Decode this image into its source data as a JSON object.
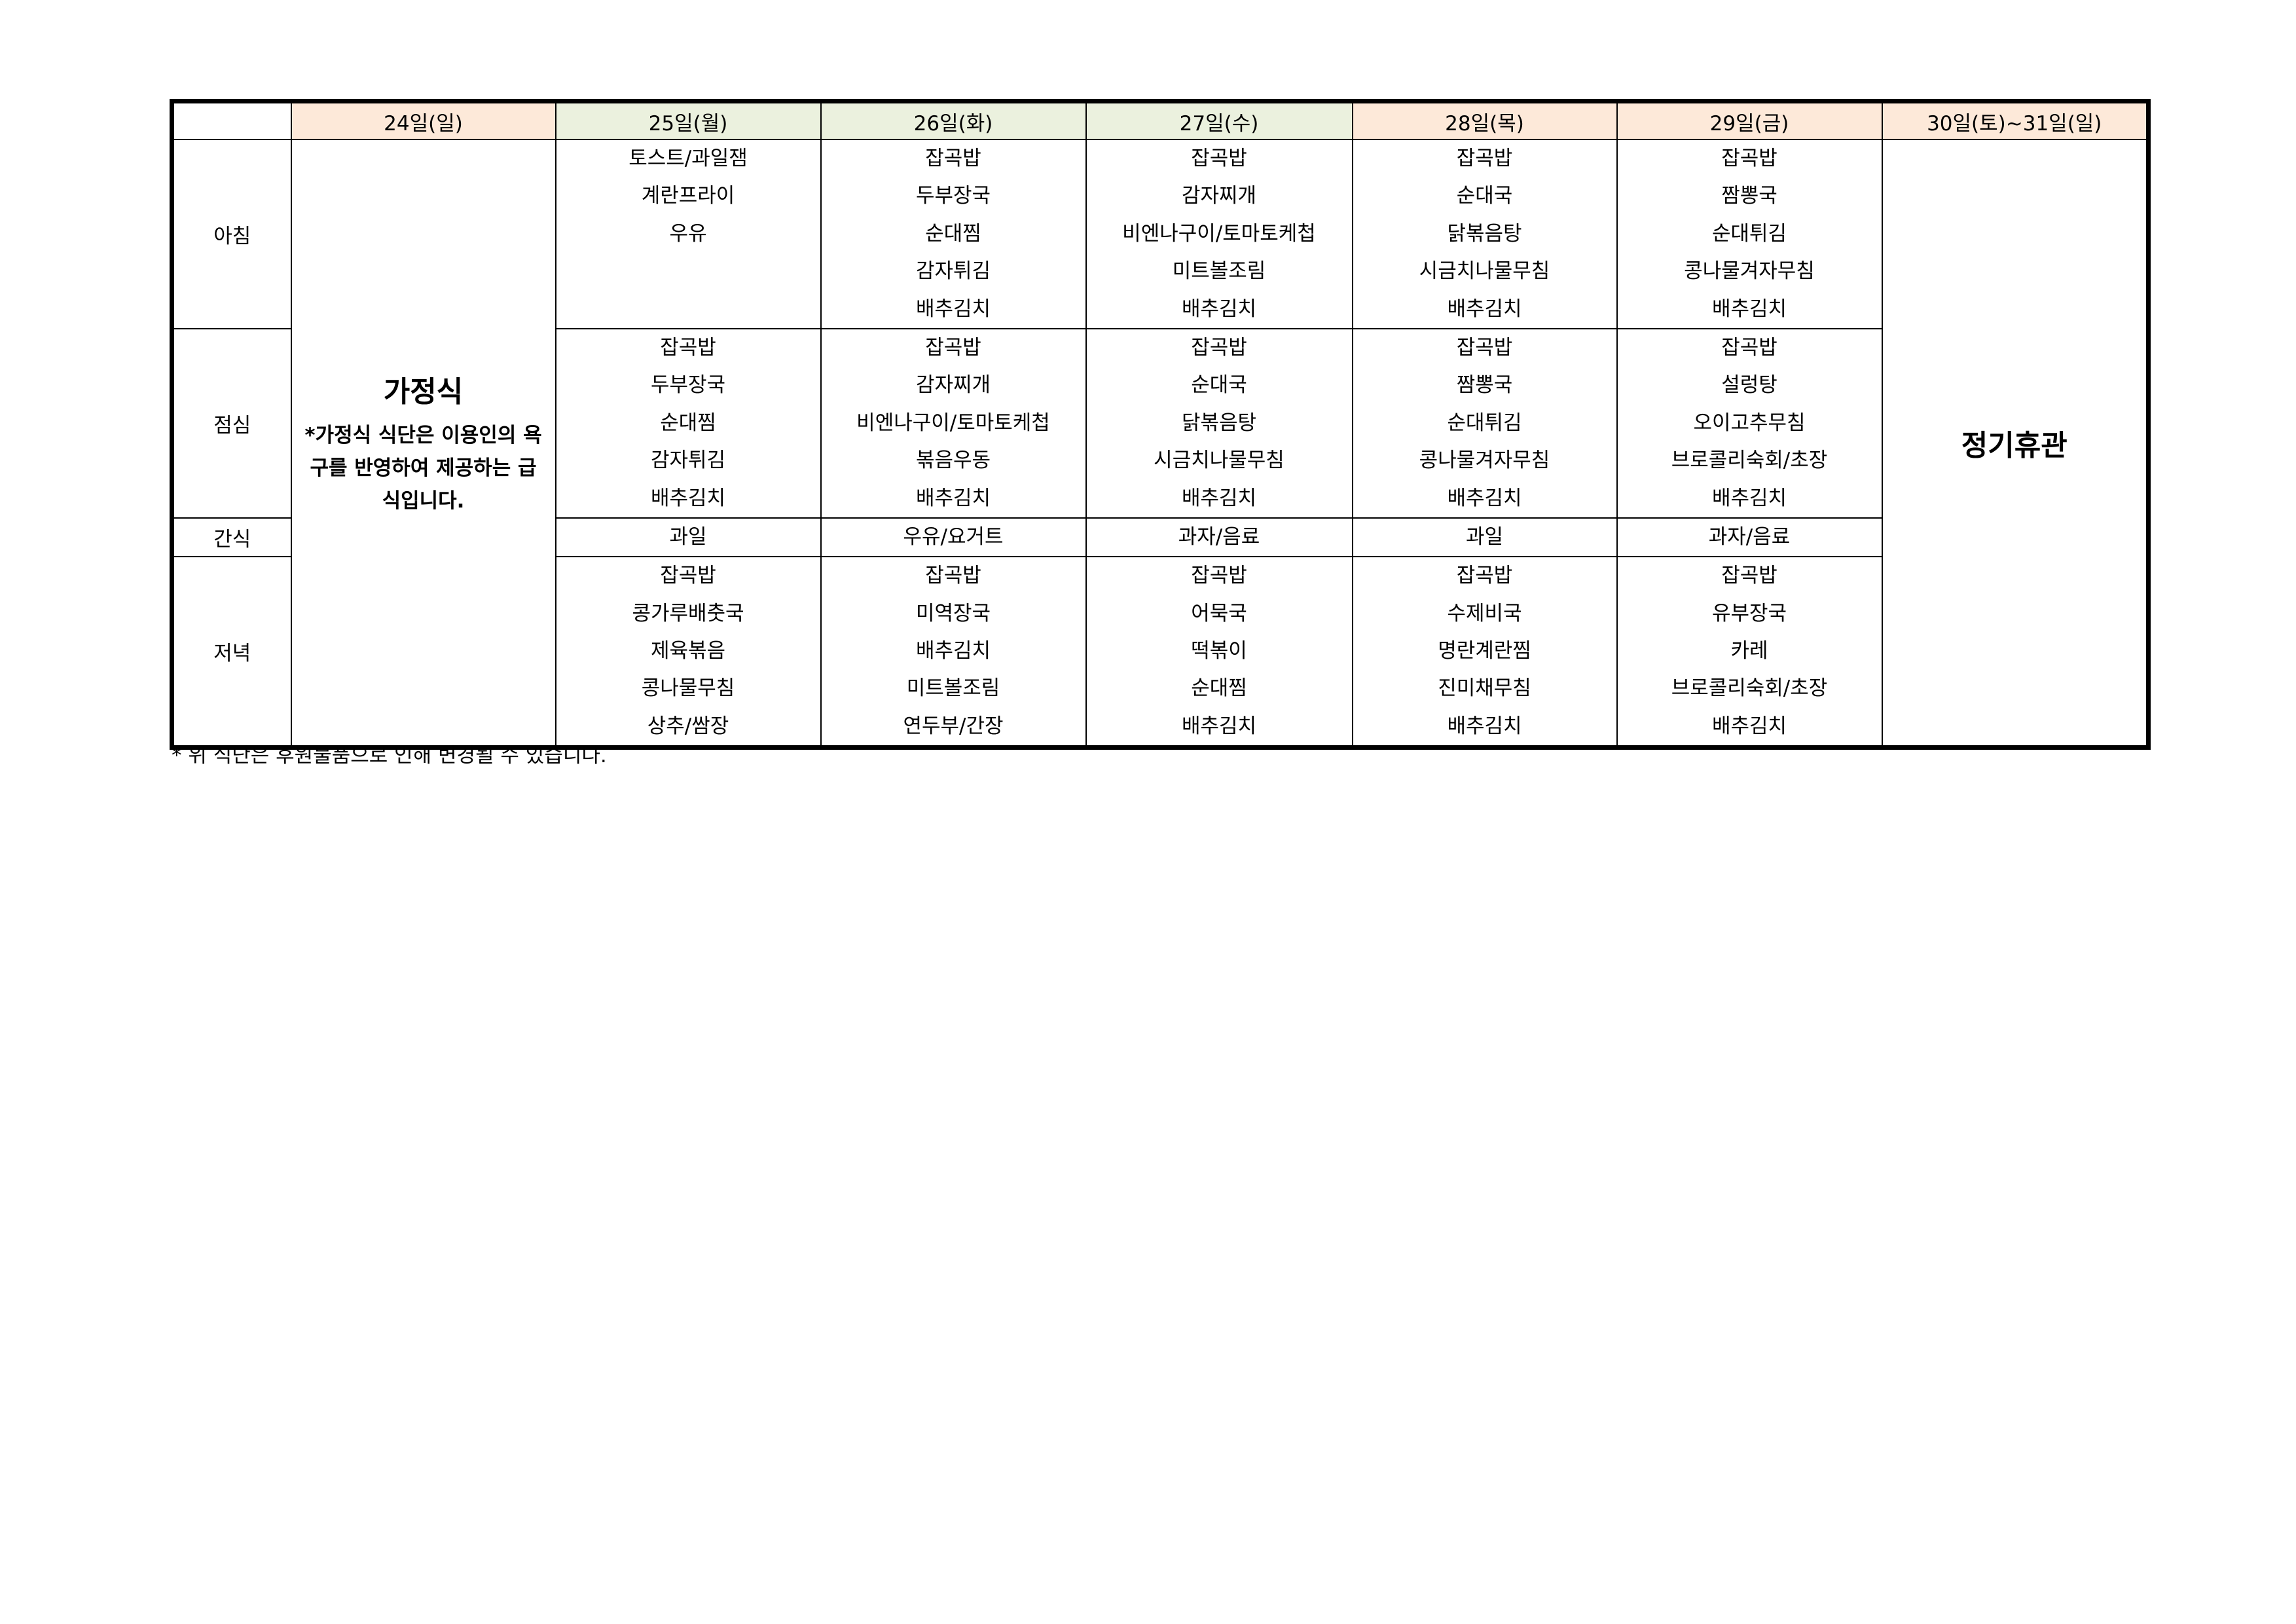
{
  "colors": {
    "peach": "#fde9d9",
    "green": "#ebf1de"
  },
  "headers": [
    {
      "label": "24일(일)",
      "color": "#fde9d9"
    },
    {
      "label": "25일(월)",
      "color": "#ebf1de"
    },
    {
      "label": "26일(화)",
      "color": "#ebf1de"
    },
    {
      "label": "27일(수)",
      "color": "#ebf1de"
    },
    {
      "label": "28일(목)",
      "color": "#fde9d9"
    },
    {
      "label": "29일(금)",
      "color": "#fde9d9"
    },
    {
      "label": "30일(토)~31일(일)",
      "color": "#fde9d9"
    }
  ],
  "meals": [
    {
      "label": "아침",
      "lines": 5,
      "days": [
        [
          "토스트/과일잼",
          "계란프라이",
          "우유"
        ],
        [
          "잡곡밥",
          "두부장국",
          "순대찜",
          "감자튀김",
          "배추김치"
        ],
        [
          "잡곡밥",
          "감자찌개",
          "비엔나구이/토마토케첩",
          "미트볼조림",
          "배추김치"
        ],
        [
          "잡곡밥",
          "순대국",
          "닭볶음탕",
          "시금치나물무침",
          "배추김치"
        ],
        [
          "잡곡밥",
          "짬뽕국",
          "순대튀김",
          "콩나물겨자무침",
          "배추김치"
        ]
      ]
    },
    {
      "label": "점심",
      "lines": 5,
      "days": [
        [
          "잡곡밥",
          "두부장국",
          "순대찜",
          "감자튀김",
          "배추김치"
        ],
        [
          "잡곡밥",
          "감자찌개",
          "비엔나구이/토마토케첩",
          "볶음우동",
          "배추김치"
        ],
        [
          "잡곡밥",
          "순대국",
          "닭볶음탕",
          "시금치나물무침",
          "배추김치"
        ],
        [
          "잡곡밥",
          "짬뽕국",
          "순대튀김",
          "콩나물겨자무침",
          "배추김치"
        ],
        [
          "잡곡밥",
          "설렁탕",
          "오이고추무침",
          "브로콜리숙회/초장",
          "배추김치"
        ]
      ]
    },
    {
      "label": "간식",
      "lines": 1,
      "days": [
        [
          "과일"
        ],
        [
          "우유/요거트"
        ],
        [
          "과자/음료"
        ],
        [
          "과일"
        ],
        [
          "과자/음료"
        ]
      ]
    },
    {
      "label": "저녁",
      "lines": 5,
      "days": [
        [
          "잡곡밥",
          "콩가루배춧국",
          "제육볶음",
          "콩나물무침",
          "상추/쌈장"
        ],
        [
          "잡곡밥",
          "미역장국",
          "배추김치",
          "미트볼조림",
          "연두부/간장"
        ],
        [
          "잡곡밥",
          "어묵국",
          "떡볶이",
          "순대찜",
          "배추김치"
        ],
        [
          "잡곡밥",
          "수제비국",
          "명란계란찜",
          "진미채무침",
          "배추김치"
        ],
        [
          "잡곡밥",
          "유부장국",
          "카레",
          "브로콜리숙회/초장",
          "배추김치"
        ]
      ]
    }
  ],
  "home_meal": {
    "title": "가정식",
    "note": "*가정식 식단은 이용인의 욕구를 반영하여 제공하는 급식입니다."
  },
  "closed": {
    "label": "정기휴관"
  },
  "footnote": "* 위 식단은 후원물품으로 인해 변경될 수 있습니다."
}
